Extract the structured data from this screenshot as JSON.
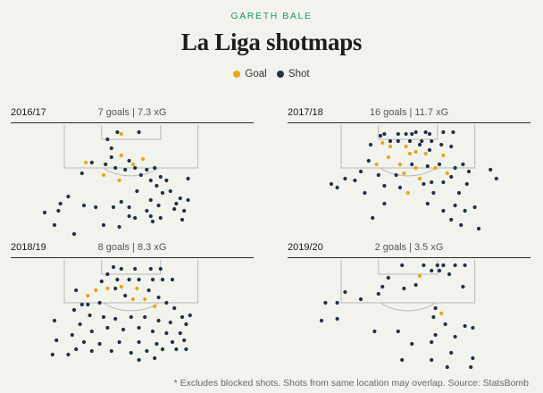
{
  "kicker": "GARETH BALE",
  "title": "La Liga shotmaps",
  "legend": [
    {
      "label": "Goal",
      "color": "#e5a619"
    },
    {
      "label": "Shot",
      "color": "#1f3346"
    }
  ],
  "colors": {
    "goal": "#e5a619",
    "shot": "#1f3346",
    "line": "#b7b7b7"
  },
  "footnote": "* Excludes blocked shots. Shots from same location may overlap. Source: StatsBomb",
  "chart_data": [
    {
      "type": "scatter",
      "season": "2016/17",
      "summary": "7 goals | 7.3 xG",
      "goals": [
        [
          29,
          5
        ],
        [
          11,
          21
        ],
        [
          20,
          28
        ],
        [
          29,
          17
        ],
        [
          35,
          22
        ],
        [
          40,
          19
        ],
        [
          28,
          31
        ]
      ],
      "shots": [
        [
          27,
          4
        ],
        [
          38,
          4
        ],
        [
          22,
          8
        ],
        [
          24,
          13
        ],
        [
          14,
          21
        ],
        [
          9,
          27
        ],
        [
          21,
          22
        ],
        [
          24,
          18
        ],
        [
          26,
          24
        ],
        [
          31,
          25
        ],
        [
          33,
          20
        ],
        [
          36,
          24
        ],
        [
          39,
          28
        ],
        [
          42,
          25
        ],
        [
          44,
          31
        ],
        [
          46,
          24
        ],
        [
          47,
          34
        ],
        [
          49,
          29
        ],
        [
          50,
          38
        ],
        [
          52,
          31
        ],
        [
          54,
          37
        ],
        [
          57,
          44
        ],
        [
          59,
          41
        ],
        [
          56,
          47
        ],
        [
          61,
          48
        ],
        [
          63,
          42
        ],
        [
          48,
          45
        ],
        [
          44,
          42
        ],
        [
          42,
          48
        ],
        [
          37,
          37
        ],
        [
          33,
          46
        ],
        [
          29,
          43
        ],
        [
          25,
          46
        ],
        [
          36,
          52
        ],
        [
          44,
          51
        ],
        [
          63,
          30
        ],
        [
          -2,
          44
        ],
        [
          -3,
          48
        ],
        [
          -10,
          49
        ],
        [
          -5,
          56
        ],
        [
          2,
          40
        ],
        [
          10,
          45
        ],
        [
          16,
          46
        ],
        [
          28,
          57
        ],
        [
          5,
          61
        ],
        [
          33,
          51
        ],
        [
          20,
          56
        ],
        [
          45,
          54
        ],
        [
          49,
          52
        ],
        [
          60,
          53
        ]
      ]
    },
    {
      "type": "scatter",
      "season": "2017/18",
      "summary": "16 goals | 11.7 xG",
      "goals": [
        [
          21,
          10
        ],
        [
          24,
          18
        ],
        [
          25,
          12
        ],
        [
          33,
          12
        ],
        [
          35,
          16
        ],
        [
          38,
          15
        ],
        [
          43,
          16
        ],
        [
          18,
          22
        ],
        [
          30,
          22
        ],
        [
          32,
          27
        ],
        [
          38,
          24
        ],
        [
          40,
          30
        ],
        [
          48,
          24
        ],
        [
          52,
          17
        ],
        [
          54,
          27
        ],
        [
          34,
          38
        ]
      ],
      "shots": [
        [
          22,
          5
        ],
        [
          29,
          5
        ],
        [
          33,
          5
        ],
        [
          36,
          5
        ],
        [
          38,
          4
        ],
        [
          43,
          4
        ],
        [
          45,
          5
        ],
        [
          52,
          4
        ],
        [
          57,
          4
        ],
        [
          15,
          11
        ],
        [
          20,
          6
        ],
        [
          25,
          9
        ],
        [
          29,
          9
        ],
        [
          35,
          9
        ],
        [
          41,
          9
        ],
        [
          46,
          9
        ],
        [
          51,
          11
        ],
        [
          56,
          12
        ],
        [
          40,
          11
        ],
        [
          45,
          14
        ],
        [
          14,
          20
        ],
        [
          10,
          26
        ],
        [
          7,
          31
        ],
        [
          19,
          28
        ],
        [
          28,
          28
        ],
        [
          36,
          22
        ],
        [
          44,
          23
        ],
        [
          50,
          22
        ],
        [
          58,
          24
        ],
        [
          62,
          22
        ],
        [
          65,
          26
        ],
        [
          64,
          33
        ],
        [
          56,
          29
        ],
        [
          52,
          32
        ],
        [
          46,
          32
        ],
        [
          42,
          33
        ],
        [
          30,
          35
        ],
        [
          22,
          34
        ],
        [
          -5,
          33
        ],
        [
          -2,
          35
        ],
        [
          2,
          30
        ],
        [
          12,
          38
        ],
        [
          60,
          38
        ],
        [
          58,
          45
        ],
        [
          56,
          53
        ],
        [
          63,
          48
        ],
        [
          52,
          48
        ],
        [
          47,
          38
        ],
        [
          22,
          44
        ],
        [
          16,
          52
        ],
        [
          44,
          44
        ],
        [
          76,
          25
        ],
        [
          79,
          30
        ],
        [
          68,
          46
        ],
        [
          61,
          56
        ],
        [
          70,
          58
        ]
      ]
    },
    {
      "type": "scatter",
      "season": "2018/19",
      "summary": "8 goals | 8.3 xG",
      "goals": [
        [
          16,
          17
        ],
        [
          22,
          16
        ],
        [
          29,
          15
        ],
        [
          35,
          22
        ],
        [
          41,
          22
        ],
        [
          46,
          26
        ],
        [
          12,
          20
        ],
        [
          37,
          16
        ]
      ],
      "shots": [
        [
          25,
          4
        ],
        [
          29,
          5
        ],
        [
          36,
          5
        ],
        [
          44,
          5
        ],
        [
          49,
          5
        ],
        [
          22,
          8
        ],
        [
          27,
          11
        ],
        [
          33,
          11
        ],
        [
          38,
          11
        ],
        [
          45,
          11
        ],
        [
          50,
          11
        ],
        [
          55,
          11
        ],
        [
          19,
          12
        ],
        [
          26,
          16
        ],
        [
          31,
          20
        ],
        [
          43,
          17
        ],
        [
          48,
          21
        ],
        [
          52,
          24
        ],
        [
          56,
          27
        ],
        [
          18,
          24
        ],
        [
          12,
          25
        ],
        [
          9,
          25
        ],
        [
          6,
          17
        ],
        [
          5,
          28
        ],
        [
          13,
          31
        ],
        [
          20,
          32
        ],
        [
          26,
          33
        ],
        [
          34,
          32
        ],
        [
          41,
          32
        ],
        [
          48,
          34
        ],
        [
          54,
          35
        ],
        [
          60,
          32
        ],
        [
          62,
          36
        ],
        [
          64,
          31
        ],
        [
          8,
          36
        ],
        [
          14,
          40
        ],
        [
          22,
          38
        ],
        [
          30,
          39
        ],
        [
          38,
          38
        ],
        [
          45,
          40
        ],
        [
          52,
          41
        ],
        [
          59,
          41
        ],
        [
          61,
          45
        ],
        [
          55,
          46
        ],
        [
          47,
          47
        ],
        [
          38,
          46
        ],
        [
          28,
          46
        ],
        [
          18,
          47
        ],
        [
          10,
          46
        ],
        [
          4,
          42
        ],
        [
          6,
          50
        ],
        [
          14,
          51
        ],
        [
          -4,
          45
        ],
        [
          -6,
          53
        ],
        [
          2,
          53
        ],
        [
          24,
          51
        ],
        [
          34,
          52
        ],
        [
          42,
          51
        ],
        [
          50,
          50
        ],
        [
          57,
          50
        ],
        [
          62,
          50
        ],
        [
          46,
          55
        ],
        [
          38,
          56
        ],
        [
          -5,
          34
        ]
      ]
    },
    {
      "type": "scatter",
      "season": "2019/20",
      "summary": "2 goals | 3.5 xG",
      "goals": [
        [
          40,
          9
        ],
        [
          51,
          30
        ]
      ],
      "shots": [
        [
          31,
          3
        ],
        [
          42,
          3
        ],
        [
          46,
          6
        ],
        [
          49,
          3
        ],
        [
          50,
          6
        ],
        [
          52,
          3
        ],
        [
          58,
          3
        ],
        [
          63,
          3
        ],
        [
          55,
          8
        ],
        [
          62,
          15
        ],
        [
          38,
          14
        ],
        [
          32,
          16
        ],
        [
          24,
          10
        ],
        [
          21,
          15
        ],
        [
          19,
          19
        ],
        [
          10,
          22
        ],
        [
          2,
          18
        ],
        [
          -2,
          24
        ],
        [
          -8,
          24
        ],
        [
          48,
          27
        ],
        [
          47,
          32
        ],
        [
          53,
          36
        ],
        [
          63,
          37
        ],
        [
          67,
          38
        ],
        [
          17,
          40
        ],
        [
          29,
          40
        ],
        [
          36,
          47
        ],
        [
          46,
          46
        ],
        [
          48,
          42
        ],
        [
          58,
          43
        ],
        [
          56,
          52
        ],
        [
          31,
          56
        ],
        [
          46,
          56
        ],
        [
          67,
          55
        ],
        [
          66,
          60
        ],
        [
          54,
          60
        ],
        [
          -2,
          33
        ],
        [
          -10,
          34
        ]
      ]
    }
  ]
}
